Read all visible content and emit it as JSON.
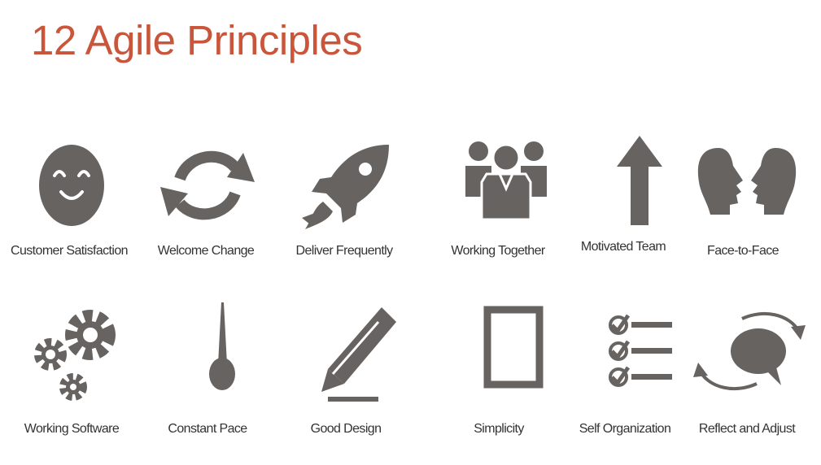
{
  "title": "12 Agile Principles",
  "colors": {
    "title": "#c9553b",
    "icon": "#666360",
    "label": "#333333"
  },
  "principles": [
    {
      "label": "Customer Satisfaction",
      "icon": "smiley-face-icon"
    },
    {
      "label": "Welcome Change",
      "icon": "cycle-arrows-icon"
    },
    {
      "label": "Deliver Frequently",
      "icon": "rocket-icon"
    },
    {
      "label": "Working Together",
      "icon": "team-icon"
    },
    {
      "label": "Motivated Team",
      "icon": "up-arrow-icon"
    },
    {
      "label": "Face-to-Face",
      "icon": "face-profiles-icon"
    },
    {
      "label": "Working Software",
      "icon": "gears-icon"
    },
    {
      "label": "Constant Pace",
      "icon": "pendulum-icon"
    },
    {
      "label": "Good Design",
      "icon": "pencil-icon"
    },
    {
      "label": "Simplicity",
      "icon": "square-frame-icon"
    },
    {
      "label": "Self Organization",
      "icon": "checklist-icon"
    },
    {
      "label": "Reflect and Adjust",
      "icon": "speech-bubble-cycle-icon"
    }
  ]
}
